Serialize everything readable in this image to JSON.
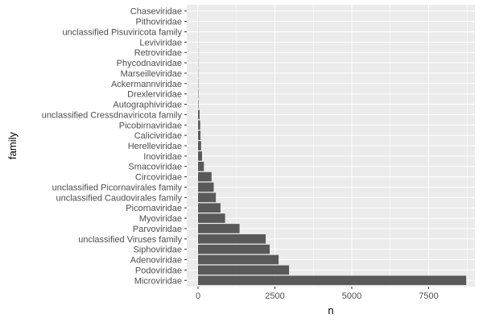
{
  "chart_data": {
    "type": "bar",
    "orientation": "horizontal",
    "title": "",
    "xlabel": "n",
    "ylabel": "family",
    "xlim": [
      0,
      8900
    ],
    "x_ticks": [
      0,
      2500,
      5000,
      7500
    ],
    "x_tick_labels": [
      "0",
      "2500",
      "5000",
      "7500"
    ],
    "grid": true,
    "legend": "none",
    "colors": {
      "panel_background": "#ebebeb",
      "grid_major": "#ffffff",
      "bar_fill": "#595959",
      "tick_text": "#4d4d4d",
      "axis_title": "#000000"
    },
    "categories": [
      "Microviridae",
      "Podoviridae",
      "Adenoviridae",
      "Siphoviridae",
      "unclassified Viruses family",
      "Parvoviridae",
      "Myoviridae",
      "Picornaviridae",
      "unclassified Caudovirales family",
      "unclassified Picornavirales family",
      "Circoviridae",
      "Smacoviridae",
      "Inoviridae",
      "Herelleviridae",
      "Caliciviridae",
      "Picobirnaviridae",
      "unclassified Cressdnaviricota family",
      "Autographiviridae",
      "Drexlerviridae",
      "Ackermannviridae",
      "Marseilleviridae",
      "Phycodnaviridae",
      "Retroviridae",
      "Leviviridae",
      "unclassified Pisuviricota family",
      "Pithoviridae",
      "Chaseviridae"
    ],
    "values": [
      8720,
      2960,
      2620,
      2330,
      2200,
      1350,
      880,
      730,
      580,
      510,
      440,
      190,
      130,
      100,
      80,
      70,
      50,
      15,
      12,
      10,
      8,
      7,
      6,
      5,
      4,
      3,
      2
    ]
  }
}
